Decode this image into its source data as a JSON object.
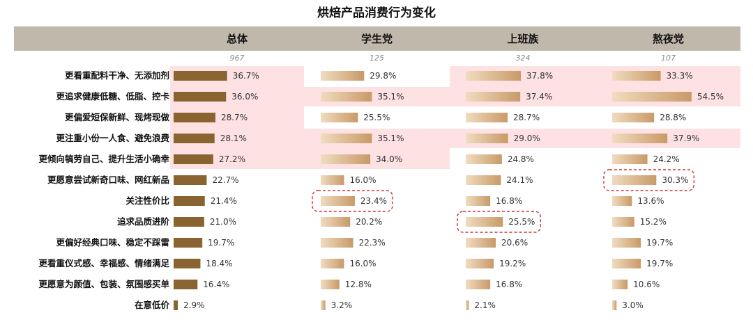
{
  "chart_data": {
    "type": "bar",
    "title": "烘焙产品消费行为变化",
    "categories": [
      "更看重配料干净、无添加剂",
      "更追求健康低糖、低脂、控卡",
      "更偏爱短保新鲜、现烤现做",
      "更注重小份一人食、避免浪费",
      "更倾向犒劳自己、提升生活小确幸",
      "更愿意尝试新奇口味、网红新品",
      "关注性价比",
      "追求品质进阶",
      "更偏好经典口味、稳定不踩雷",
      "更看重仪式感、幸福感、情绪满足",
      "更愿意为颜值、包装、氛围感买单",
      "在意低价"
    ],
    "series": [
      {
        "name": "总体",
        "base": "967",
        "color": "#8a6430",
        "values": [
          36.7,
          36.0,
          28.7,
          28.1,
          27.2,
          22.7,
          21.4,
          21.0,
          19.7,
          18.4,
          16.4,
          2.9
        ],
        "labels": [
          "36.7%",
          "36.0%",
          "28.7%",
          "28.1%",
          "27.2%",
          "22.7%",
          "21.4%",
          "21.0%",
          "19.7%",
          "18.4%",
          "16.4%",
          "2.9%"
        ],
        "highlight_rows": [
          0,
          1,
          2,
          3,
          4
        ],
        "circled_rows": []
      },
      {
        "name": "学生党",
        "base": "125",
        "color": "#d9b88e",
        "values": [
          29.8,
          35.1,
          25.5,
          35.1,
          34.0,
          16.0,
          23.4,
          20.2,
          22.3,
          16.0,
          12.8,
          3.2
        ],
        "labels": [
          "29.8%",
          "35.1%",
          "25.5%",
          "35.1%",
          "34.0%",
          "16.0%",
          "23.4%",
          "20.2%",
          "22.3%",
          "16.0%",
          "12.8%",
          "3.2%"
        ],
        "highlight_rows": [
          1,
          3,
          4
        ],
        "circled_rows": [
          6
        ]
      },
      {
        "name": "上班族",
        "base": "324",
        "color": "#d9b88e",
        "values": [
          37.8,
          37.4,
          28.7,
          29.0,
          24.8,
          24.1,
          16.8,
          25.5,
          20.6,
          19.2,
          16.8,
          2.1
        ],
        "labels": [
          "37.8%",
          "37.4%",
          "28.7%",
          "29.0%",
          "24.8%",
          "24.1%",
          "16.8%",
          "25.5%",
          "20.6%",
          "19.2%",
          "16.8%",
          "2.1%"
        ],
        "highlight_rows": [
          0,
          1,
          3
        ],
        "circled_rows": [
          7
        ]
      },
      {
        "name": "熬夜党",
        "base": "107",
        "color": "#d9b88e",
        "values": [
          33.3,
          54.5,
          28.8,
          37.9,
          24.2,
          30.3,
          13.6,
          15.2,
          19.7,
          19.7,
          10.6,
          3.0
        ],
        "labels": [
          "33.3%",
          "54.5%",
          "28.8%",
          "37.9%",
          "24.2%",
          "30.3%",
          "13.6%",
          "15.2%",
          "19.7%",
          "19.7%",
          "10.6%",
          "3.0%"
        ],
        "highlight_rows": [
          0,
          1,
          3
        ],
        "circled_rows": [
          5
        ]
      }
    ],
    "colors": {
      "header_band": "#c1b8ac",
      "highlight": "#fde1e3",
      "circle": "#d32f2f",
      "gradient_light": "#f1dcc0",
      "gradient_dark": "#c89a68"
    }
  }
}
